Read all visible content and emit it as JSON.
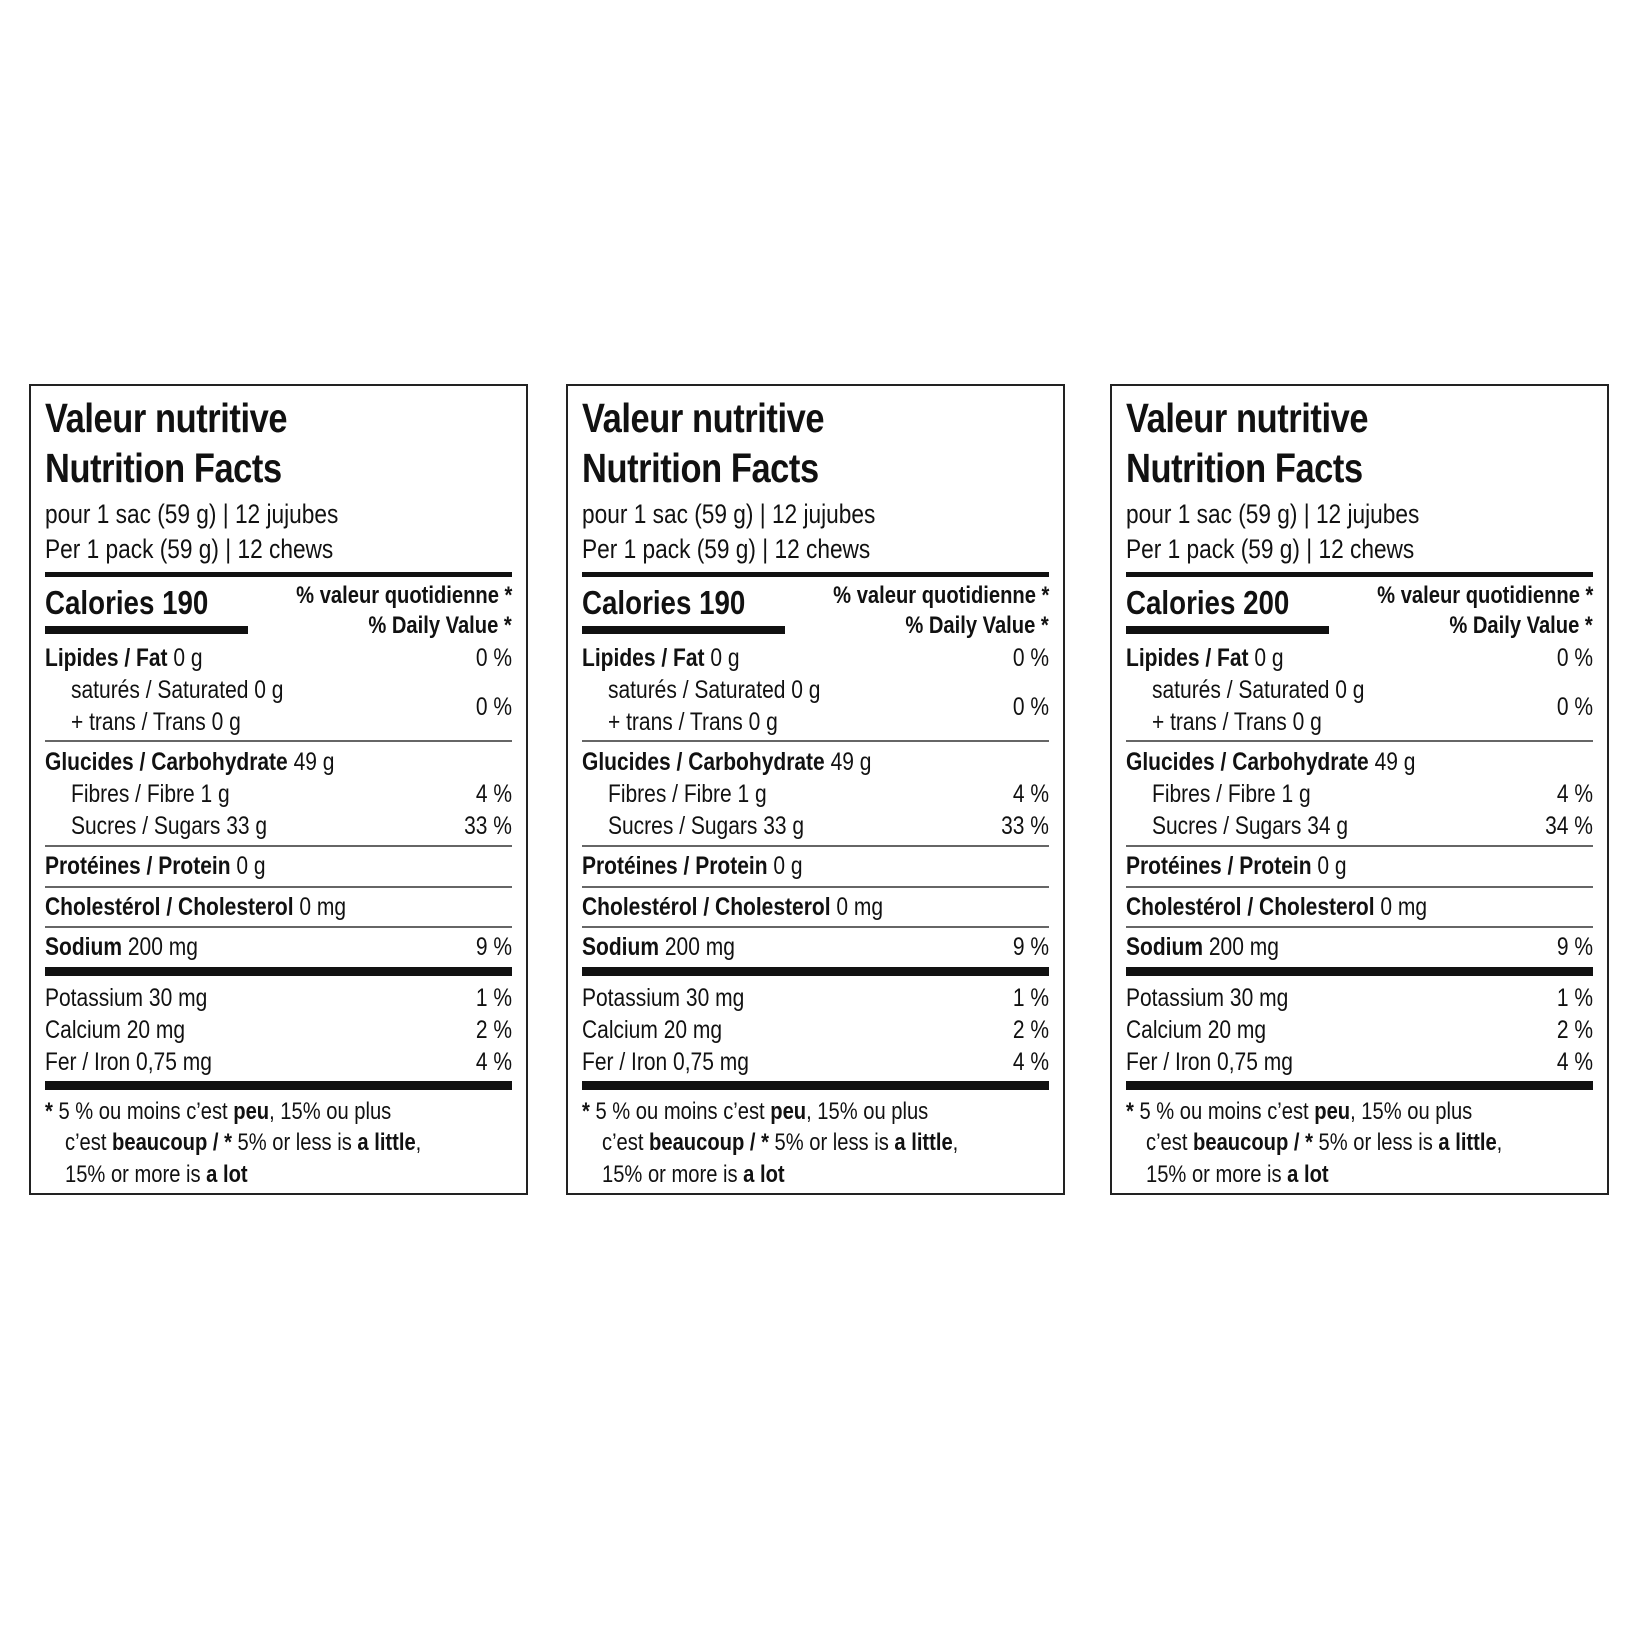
{
  "labels": [
    {
      "title_fr": "Valeur nutritive",
      "title_en": "Nutrition Facts",
      "serving_fr": "pour 1 sac (59 g) | 12 jujubes",
      "serving_en": "Per 1 pack (59 g) | 12 chews",
      "calories_label": "Calories",
      "calories_value": "190",
      "dv_fr": "% valeur quotidienne *",
      "dv_en": "% Daily Value *",
      "fat": {
        "name": "Lipides / Fat",
        "amount": "0 g",
        "dv": "0 %"
      },
      "saturated": {
        "name": "saturés / Saturated",
        "amount": "0 g"
      },
      "trans": {
        "name": "+ trans / Trans",
        "amount": "0 g"
      },
      "sat_trans_dv": "0 %",
      "carb": {
        "name": "Glucides / Carbohydrate",
        "amount": "49 g"
      },
      "fibre": {
        "name": "Fibres / Fibre",
        "amount": "1 g",
        "dv": "4 %"
      },
      "sugars": {
        "name": "Sucres / Sugars",
        "amount": "33 g",
        "dv": "33 %"
      },
      "protein": {
        "name": "Protéines / Protein",
        "amount": "0 g"
      },
      "cholesterol": {
        "name": "Cholestérol / Cholesterol",
        "amount": "0 mg"
      },
      "sodium": {
        "name": "Sodium",
        "amount": "200 mg",
        "dv": "9 %"
      },
      "potassium": {
        "name": "Potassium",
        "amount": "30 mg",
        "dv": "1 %"
      },
      "calcium": {
        "name": "Calcium",
        "amount": "20 mg",
        "dv": "2 %"
      },
      "iron": {
        "name": "Fer / Iron",
        "amount": "0,75 mg",
        "dv": "4 %"
      },
      "footnote": [
        [
          "* ",
          "5 % ou moins c’est ",
          "peu",
          ", 15% ou plus"
        ],
        [
          "c’est ",
          "beaucoup / * ",
          "5% or less is ",
          "a little",
          ","
        ],
        [
          "15% or more is ",
          "a lot"
        ]
      ]
    },
    {
      "title_fr": "Valeur nutritive",
      "title_en": "Nutrition Facts",
      "serving_fr": "pour 1 sac (59 g) | 12 jujubes",
      "serving_en": "Per 1 pack (59 g) | 12 chews",
      "calories_label": "Calories",
      "calories_value": "190",
      "dv_fr": "% valeur quotidienne *",
      "dv_en": "% Daily Value *",
      "fat": {
        "name": "Lipides / Fat",
        "amount": "0 g",
        "dv": "0 %"
      },
      "saturated": {
        "name": "saturés / Saturated",
        "amount": "0 g"
      },
      "trans": {
        "name": "+ trans / Trans",
        "amount": "0 g"
      },
      "sat_trans_dv": "0 %",
      "carb": {
        "name": "Glucides / Carbohydrate",
        "amount": "49 g"
      },
      "fibre": {
        "name": "Fibres / Fibre",
        "amount": "1 g",
        "dv": "4 %"
      },
      "sugars": {
        "name": "Sucres / Sugars",
        "amount": "33 g",
        "dv": "33 %"
      },
      "protein": {
        "name": "Protéines / Protein",
        "amount": "0 g"
      },
      "cholesterol": {
        "name": "Cholestérol / Cholesterol",
        "amount": "0 mg"
      },
      "sodium": {
        "name": "Sodium",
        "amount": "200 mg",
        "dv": "9 %"
      },
      "potassium": {
        "name": "Potassium",
        "amount": "30 mg",
        "dv": "1 %"
      },
      "calcium": {
        "name": "Calcium",
        "amount": "20 mg",
        "dv": "2 %"
      },
      "iron": {
        "name": "Fer / Iron",
        "amount": "0,75 mg",
        "dv": "4 %"
      },
      "footnote": [
        [
          "* ",
          "5 % ou moins c’est ",
          "peu",
          ", 15% ou plus"
        ],
        [
          "c’est ",
          "beaucoup / * ",
          "5% or less is ",
          "a little",
          ","
        ],
        [
          "15% or more is ",
          "a lot"
        ]
      ]
    },
    {
      "title_fr": "Valeur nutritive",
      "title_en": "Nutrition Facts",
      "serving_fr": "pour 1 sac (59 g) | 12 jujubes",
      "serving_en": "Per 1 pack (59 g) | 12 chews",
      "calories_label": "Calories",
      "calories_value": "200",
      "dv_fr": "% valeur quotidienne *",
      "dv_en": "% Daily Value *",
      "fat": {
        "name": "Lipides / Fat",
        "amount": "0 g",
        "dv": "0 %"
      },
      "saturated": {
        "name": "saturés / Saturated",
        "amount": "0 g"
      },
      "trans": {
        "name": "+ trans / Trans",
        "amount": "0 g"
      },
      "sat_trans_dv": "0 %",
      "carb": {
        "name": "Glucides / Carbohydrate",
        "amount": "49 g"
      },
      "fibre": {
        "name": "Fibres / Fibre",
        "amount": "1 g",
        "dv": "4 %"
      },
      "sugars": {
        "name": "Sucres / Sugars",
        "amount": "34 g",
        "dv": "34 %"
      },
      "protein": {
        "name": "Protéines / Protein",
        "amount": "0 g"
      },
      "cholesterol": {
        "name": "Cholestérol / Cholesterol",
        "amount": "0 mg"
      },
      "sodium": {
        "name": "Sodium",
        "amount": "200 mg",
        "dv": "9 %"
      },
      "potassium": {
        "name": "Potassium",
        "amount": "30 mg",
        "dv": "1 %"
      },
      "calcium": {
        "name": "Calcium",
        "amount": "20 mg",
        "dv": "2 %"
      },
      "iron": {
        "name": "Fer / Iron",
        "amount": "0,75 mg",
        "dv": "4 %"
      },
      "footnote": [
        [
          "* ",
          "5 % ou moins c’est ",
          "peu",
          ", 15% ou plus"
        ],
        [
          "c’est ",
          "beaucoup / * ",
          "5% or less is ",
          "a little",
          ","
        ],
        [
          "15% or more is ",
          "a lot"
        ]
      ]
    }
  ]
}
